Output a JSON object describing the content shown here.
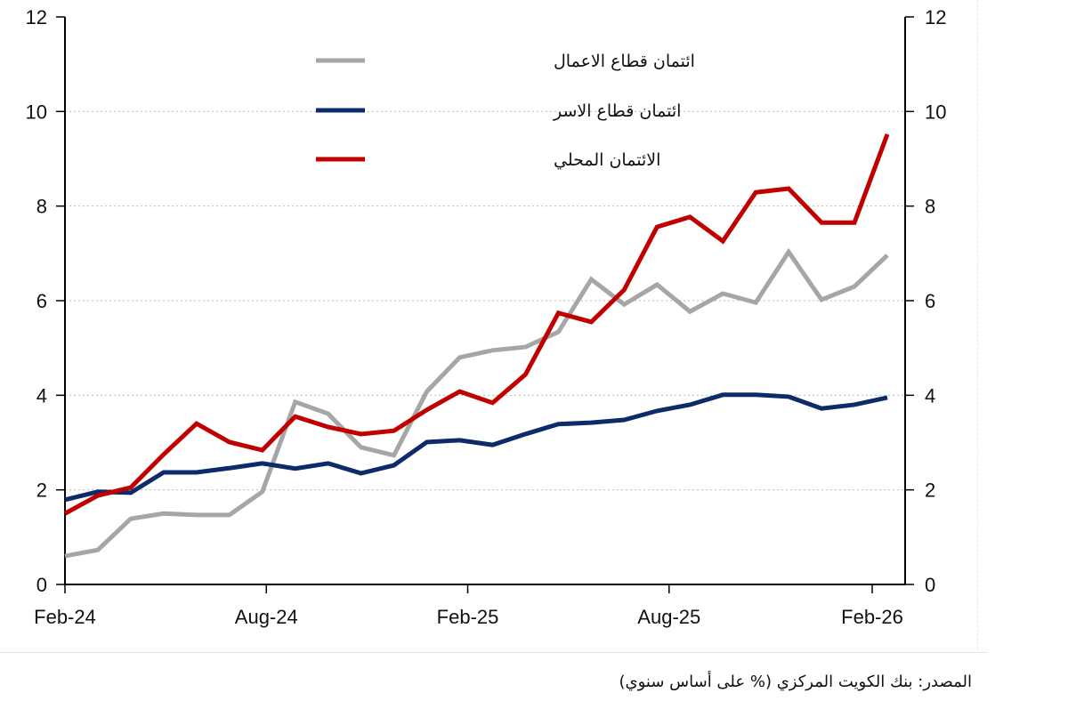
{
  "chart_data": {
    "type": "line",
    "title": "",
    "xlabel": "",
    "ylabel": "",
    "x_ticks": [
      {
        "label": "Feb-24",
        "month": 0
      },
      {
        "label": "Aug-24",
        "month": 6
      },
      {
        "label": "Feb-25",
        "month": 12
      },
      {
        "label": "Aug-25",
        "month": 18
      },
      {
        "label": "Feb-26",
        "month": 24
      }
    ],
    "ylim": [
      0,
      12
    ],
    "y_ticks": [
      0,
      2,
      4,
      6,
      8,
      10,
      12
    ],
    "grid": true,
    "legend_placement": "top-center",
    "x": [
      0,
      1,
      2,
      3,
      4,
      5,
      6,
      7,
      8,
      9,
      10,
      11,
      12,
      13,
      14,
      15,
      16,
      17,
      18,
      19,
      20,
      21,
      22,
      23,
      24,
      25
    ],
    "series": [
      {
        "name": "ائتمان قطاع الاعمال",
        "color": "#a6a6a6",
        "values": [
          0.6,
          0.73,
          1.39,
          1.5,
          1.47,
          1.47,
          1.96,
          3.86,
          3.61,
          2.9,
          2.73,
          4.08,
          4.8,
          4.95,
          5.02,
          5.34,
          6.45,
          5.92,
          6.34,
          5.77,
          6.15,
          5.96,
          7.03,
          6.02,
          6.3,
          6.96
        ]
      },
      {
        "name": "ائتمان قطاع الاسر",
        "color": "#0d2a6b",
        "values": [
          1.79,
          1.96,
          1.94,
          2.37,
          2.37,
          2.46,
          2.56,
          2.45,
          2.56,
          2.35,
          2.52,
          3.01,
          3.05,
          2.95,
          3.18,
          3.39,
          3.42,
          3.48,
          3.67,
          3.8,
          4.01,
          4.01,
          3.97,
          3.72,
          3.8,
          3.95
        ]
      },
      {
        "name": "الائتمان المحلي",
        "color": "#c00000",
        "values": [
          1.5,
          1.88,
          2.05,
          2.75,
          3.4,
          3.01,
          2.84,
          3.55,
          3.33,
          3.18,
          3.25,
          3.69,
          4.08,
          3.84,
          4.44,
          5.74,
          5.55,
          6.23,
          7.56,
          7.77,
          7.26,
          8.29,
          8.37,
          7.65,
          7.65,
          9.52
        ]
      }
    ]
  },
  "source": "المصدر: بنك الكويت المركزي (% على أساس سنوي)"
}
